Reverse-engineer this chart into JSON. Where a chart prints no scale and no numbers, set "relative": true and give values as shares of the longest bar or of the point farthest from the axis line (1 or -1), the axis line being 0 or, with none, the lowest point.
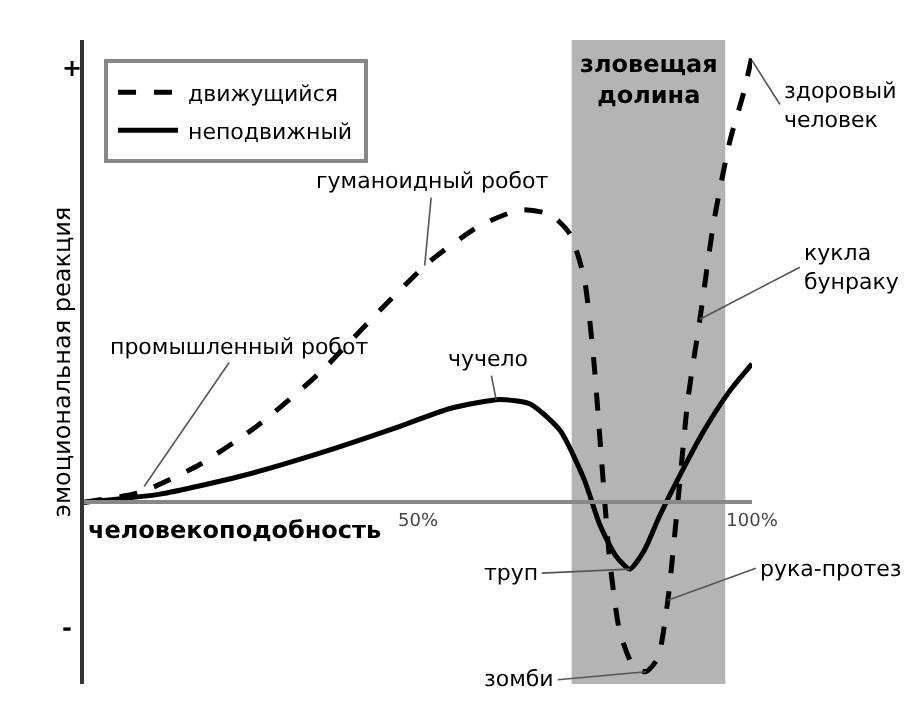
{
  "chart_data": {
    "type": "line",
    "relative": true,
    "xlabel": "человекоподобность",
    "ylabel": "эмоциональная реакция",
    "xlim": [
      0,
      100
    ],
    "xticks": [
      {
        "value": 50,
        "label": "50%"
      },
      {
        "value": 100,
        "label": "100%"
      }
    ],
    "legend": "top left",
    "grid": false,
    "series": [
      {
        "name": "движущийся",
        "color": "#000000",
        "line_style": "dashed",
        "x": [
          0,
          8.4,
          17.4,
          26.3,
          35.3,
          44.3,
          51.8,
          59.3,
          65.3,
          69.8,
          72.8,
          74.9,
          76.3,
          77.5,
          78.7,
          80.2,
          82.3,
          84.1,
          85.9,
          87.4,
          88.9,
          90.4,
          92.2,
          94.3,
          96.7,
          98.8,
          100
        ],
        "values": [
          0,
          0.022,
          0.085,
          0.175,
          0.29,
          0.43,
          0.54,
          0.62,
          0.655,
          0.645,
          0.6,
          0.5,
          0.32,
          0.09,
          -0.13,
          -0.29,
          -0.37,
          -0.38,
          -0.35,
          -0.22,
          0,
          0.23,
          0.41,
          0.63,
          0.81,
          0.92,
          1
        ]
      },
      {
        "name": "неподвижный",
        "color": "#000000",
        "line_style": "solid",
        "x": [
          0,
          11.4,
          23.4,
          35.3,
          47.3,
          54.8,
          62.3,
          66.8,
          71.3,
          74.9,
          77.2,
          79.6,
          81.7,
          83.8,
          86.2,
          89.2,
          92.8,
          96.7,
          100
        ],
        "values": [
          0,
          0.018,
          0.058,
          0.11,
          0.17,
          0.21,
          0.23,
          0.22,
          0.16,
          0.05,
          -0.05,
          -0.12,
          -0.15,
          -0.11,
          -0.03,
          0.06,
          0.16,
          0.25,
          0.31
        ]
      }
    ],
    "bands": [
      {
        "axis": "x",
        "from": 73,
        "to": 96,
        "label": "зловещая\nдолина",
        "color": "#b4b4b4"
      }
    ],
    "annotations": [
      {
        "text": "промышленный робот",
        "x": 9,
        "y": 0.035
      },
      {
        "text": "гуманоидный робот",
        "x": 51,
        "y": 0.53
      },
      {
        "text": "чучело",
        "x": 61.7,
        "y": 0.23
      },
      {
        "text": "труп",
        "x": 81.7,
        "y": -0.15
      },
      {
        "text": "зомби",
        "x": 84.1,
        "y": -0.38
      },
      {
        "text": "рука-протез",
        "x": 87.4,
        "y": -0.22
      },
      {
        "text": "кукла\nбунраку",
        "x": 92.2,
        "y": 0.41
      },
      {
        "text": "здоровый\nчеловек",
        "x": 100,
        "y": 0.99
      },
      "+",
      "-"
    ]
  }
}
